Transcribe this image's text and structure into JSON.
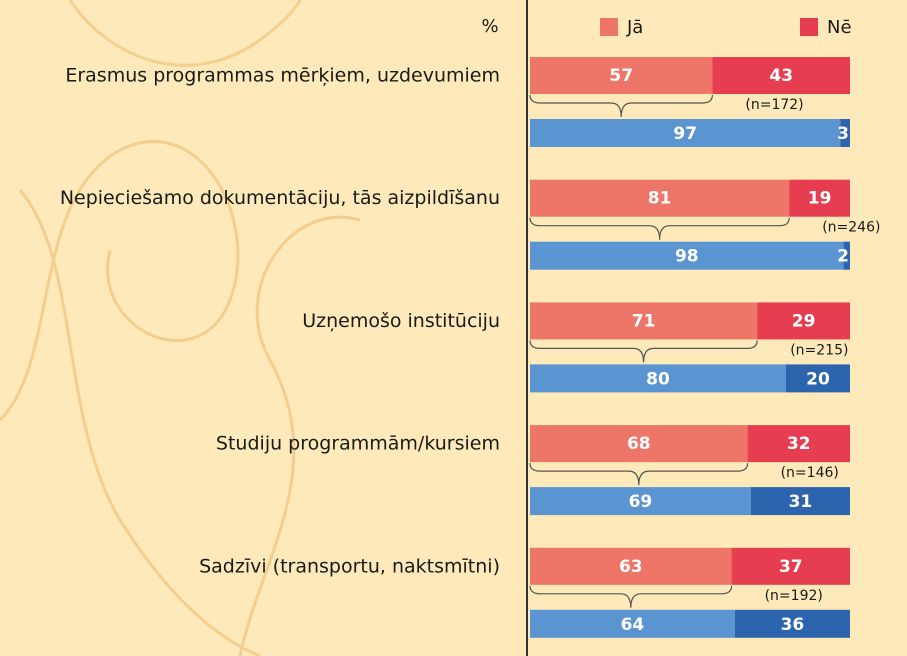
{
  "chart_data": {
    "type": "stacked-hbar-pairs",
    "axis_label": "%",
    "categories": [
      "Erasmus programmas mērķiem, uzdevumiem",
      "Nepieciešamo dokumentāciju, tās aizpildīšanu",
      "Uzņemošo institūciju",
      "Studiju programmām/kursiem",
      "Sadzīvi (transportu, naktsmītni)"
    ],
    "series": [
      {
        "name": "Jā",
        "color": "#ee7669",
        "values": [
          57,
          81,
          71,
          68,
          63
        ]
      },
      {
        "name": "Nē",
        "color": "#e73d51",
        "values": [
          43,
          19,
          29,
          32,
          37
        ]
      }
    ],
    "series_b": [
      {
        "color": "#5b95d1",
        "values": [
          97,
          98,
          80,
          69,
          64
        ]
      },
      {
        "color": "#2c65ae",
        "values": [
          3,
          2,
          20,
          31,
          36
        ]
      }
    ],
    "annotations": [
      "(n=172)",
      "(n=246)",
      "(n=215)",
      "(n=146)",
      "(n=192)"
    ],
    "xlim": [
      0,
      100
    ]
  }
}
